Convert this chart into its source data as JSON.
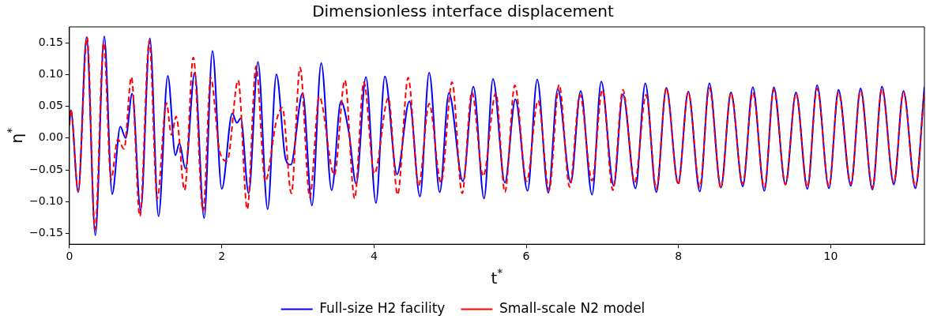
{
  "chart_data": {
    "type": "line",
    "title": "Dimensionless interface displacement",
    "xlabel": "t$^{*}$",
    "ylabel": "η$^{*}$",
    "xlim": [
      0,
      11.23
    ],
    "xticks": [
      0,
      2,
      4,
      6,
      8,
      10
    ],
    "ylim": [
      -0.167,
      0.175
    ],
    "yticks": [
      {
        "value": -0.15,
        "label": "−0.15"
      },
      {
        "value": -0.1,
        "label": "−0.10"
      },
      {
        "value": -0.05,
        "label": "−0.05"
      },
      {
        "value": 0,
        "label": "0.00"
      },
      {
        "value": 0.05,
        "label": "0.05"
      },
      {
        "value": 0.1,
        "label": "0.10"
      },
      {
        "value": 0.15,
        "label": "0.15"
      }
    ],
    "legend": "bottom",
    "marker": "none",
    "series": [
      {
        "name": "Full-size H2 facility",
        "color": "#0000ff",
        "line_style": "solid",
        "x": [
          0,
          0.018,
          0.115,
          0.225,
          0.34,
          0.457,
          0.561,
          0.668,
          0.738,
          0.824,
          0.935,
          1.056,
          1.17,
          1.292,
          1.392,
          1.444,
          1.523,
          1.645,
          1.769,
          1.878,
          2.001,
          2.139,
          2.198,
          2.25,
          2.354,
          2.476,
          2.603,
          2.718,
          2.839,
          2.907,
          3.063,
          3.185,
          3.307,
          3.444,
          3.566,
          3.67,
          3.766,
          3.894,
          4.026,
          4.143,
          4.303,
          4.465,
          4.604,
          4.725,
          4.864,
          4.984,
          5.168,
          5.306,
          5.446,
          5.563,
          5.72,
          5.857,
          6.017,
          6.144,
          6.29,
          6.414,
          6.584,
          6.715,
          6.864,
          6.985,
          7.149,
          7.269,
          7.435,
          7.564,
          7.709,
          7.84,
          7.996,
          8.128,
          8.28,
          8.405,
          8.557,
          8.689,
          8.844,
          8.976,
          9.128,
          9.252,
          9.405,
          9.543,
          9.693,
          9.82,
          9.976,
          10.101,
          10.264,
          10.391,
          10.547,
          10.672,
          10.828,
          10.955,
          11.111,
          11.23
        ],
        "values": [
          0.024,
          0.044,
          -0.085,
          0.159,
          -0.153,
          0.16,
          -0.088,
          0.018,
          0,
          0.07,
          -0.114,
          0.157,
          -0.123,
          0.098,
          -0.027,
          -0.008,
          -0.048,
          0.103,
          -0.126,
          0.137,
          -0.08,
          0.039,
          0.024,
          0.031,
          -0.087,
          0.12,
          -0.112,
          0.1,
          -0.033,
          -0.042,
          0.071,
          -0.106,
          0.118,
          -0.082,
          0.058,
          0.009,
          -0.072,
          0.096,
          -0.102,
          0.097,
          -0.057,
          0.058,
          -0.092,
          0.103,
          -0.085,
          0.071,
          -0.068,
          0.081,
          -0.095,
          0.093,
          -0.07,
          0.061,
          -0.083,
          0.092,
          -0.086,
          0.077,
          -0.07,
          0.074,
          -0.089,
          0.089,
          -0.075,
          0.069,
          -0.079,
          0.086,
          -0.085,
          0.079,
          -0.071,
          0.073,
          -0.084,
          0.086,
          -0.078,
          0.072,
          -0.076,
          0.08,
          -0.083,
          0.08,
          -0.073,
          0.072,
          -0.08,
          0.083,
          -0.079,
          0.076,
          -0.075,
          0.078,
          -0.081,
          0.081,
          -0.073,
          0.074,
          -0.079,
          0.081
        ]
      },
      {
        "name": "Small-scale N2 model",
        "color": "#ff0000",
        "line_style": "dashed",
        "x": [
          0,
          0.018,
          0.115,
          0.232,
          0.336,
          0.45,
          0.547,
          0.634,
          0.717,
          0.814,
          0.925,
          1.049,
          1.153,
          1.274,
          1.34,
          1.402,
          1.513,
          1.627,
          1.756,
          1.855,
          1.973,
          2.071,
          2.216,
          2.336,
          2.451,
          2.572,
          2.718,
          2.797,
          2.915,
          3.029,
          3.157,
          3.281,
          3.479,
          3.618,
          3.745,
          3.867,
          4.005,
          4.189,
          4.31,
          4.449,
          4.587,
          4.725,
          4.881,
          5.026,
          5.158,
          5.286,
          5.435,
          5.601,
          5.72,
          5.85,
          6.006,
          6.155,
          6.3,
          6.432,
          6.57,
          6.705,
          6.864,
          6.999,
          7.138,
          7.269,
          7.425,
          7.574,
          7.709,
          7.84,
          7.996,
          8.128,
          8.28,
          8.405,
          8.557,
          8.689,
          8.844,
          8.976,
          9.128,
          9.252,
          9.405,
          9.543,
          9.693,
          9.82,
          9.976,
          10.101,
          10.264,
          10.391,
          10.547,
          10.672,
          10.828,
          10.955,
          11.111,
          11.23
        ],
        "values": [
          0.02,
          0.045,
          -0.083,
          0.159,
          -0.144,
          0.15,
          -0.065,
          -0.002,
          -0.017,
          0.096,
          -0.123,
          0.153,
          -0.095,
          0.055,
          0.005,
          0.034,
          -0.082,
          0.127,
          -0.115,
          0.095,
          -0.021,
          -0.036,
          0.091,
          -0.112,
          0.113,
          -0.068,
          0.027,
          0.048,
          -0.087,
          0.111,
          -0.093,
          0.065,
          -0.058,
          0.091,
          -0.095,
          0.088,
          -0.056,
          0.063,
          -0.089,
          0.095,
          -0.075,
          0.054,
          -0.07,
          0.088,
          -0.087,
          0.072,
          -0.06,
          0.071,
          -0.085,
          0.083,
          -0.068,
          0.059,
          -0.082,
          0.084,
          -0.077,
          0.068,
          -0.067,
          0.076,
          -0.082,
          0.076,
          -0.07,
          0.068,
          -0.08,
          0.078,
          -0.073,
          0.072,
          -0.077,
          0.079,
          -0.078,
          0.071,
          -0.072,
          0.072,
          -0.078,
          0.076,
          -0.073,
          0.07,
          -0.077,
          0.078,
          -0.076,
          0.072,
          -0.072,
          0.074,
          -0.078,
          0.077,
          -0.07,
          0.072,
          -0.076,
          0.075
        ]
      }
    ]
  }
}
